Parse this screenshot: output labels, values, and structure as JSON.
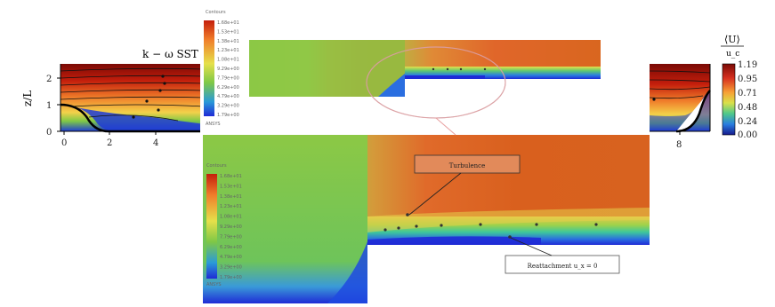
{
  "left_plot": {
    "title": "k − ω SST",
    "ylabel": "z/L",
    "yticks": [
      "0",
      "1",
      "2"
    ],
    "xticks": [
      "0",
      "2",
      "4"
    ]
  },
  "right_plot": {
    "xticks": [
      "8"
    ],
    "colorbar_label_num": "⟨U⟩",
    "colorbar_label_den": "u_c",
    "colorbar_ticks": [
      "1.19",
      "0.95",
      "0.71",
      "0.48",
      "0.24",
      "0.00"
    ]
  },
  "top_inset": {
    "legend_title": "Contours",
    "legend_values": [
      "1.68e+01",
      "1.53e+01",
      "1.38e+01",
      "1.23e+01",
      "1.08e+01",
      "9.29e+00",
      "7.79e+00",
      "6.29e+00",
      "4.79e+00",
      "3.29e+00",
      "1.79e+00"
    ],
    "legend_footer": "ANSYS"
  },
  "bottom_inset": {
    "legend_title": "Contours",
    "legend_values": [
      "1.68e+01",
      "1.53e+01",
      "1.38e+01",
      "1.23e+01",
      "1.08e+01",
      "9.29e+00",
      "7.79e+00",
      "6.29e+00",
      "4.79e+00",
      "3.29e+00",
      "1.79e+00"
    ],
    "legend_footer": "ANSYS",
    "annotation_top": "Turbulence",
    "annotation_bottom": "Reattachment u_x = 0"
  },
  "colors": {
    "jet_red": "#c41e0c",
    "jet_orange": "#e86a1a",
    "jet_green": "#7ec846",
    "jet_blue": "#1f2bd6",
    "highlight_ellipse": "#e8a0a0"
  }
}
